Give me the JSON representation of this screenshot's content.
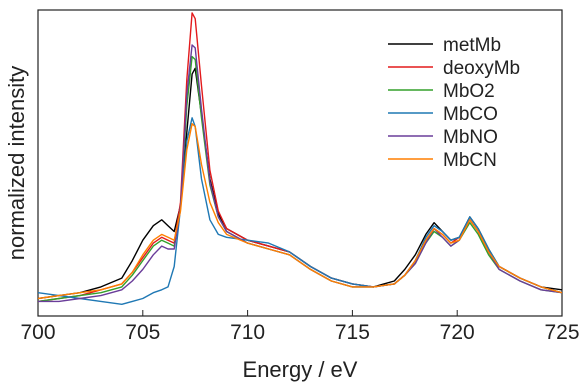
{
  "chart_data": {
    "type": "line",
    "xlabel": "Energy / eV",
    "ylabel": "normalized intensity",
    "xlim": [
      700,
      725
    ],
    "ylim": [
      -0.05,
      1.0
    ],
    "xticks": [
      700,
      705,
      710,
      715,
      720,
      725
    ],
    "show_yticks": false,
    "grid": false,
    "legend_position": "top-right",
    "series": [
      {
        "name": "metMb",
        "color": "#000000",
        "x": [
          700,
          701,
          702,
          703,
          704,
          704.5,
          705,
          705.5,
          705.9,
          706.2,
          706.5,
          706.8,
          707.1,
          707.35,
          707.5,
          707.8,
          708.2,
          708.6,
          709,
          710,
          711,
          712,
          713,
          714,
          715,
          716,
          717,
          717.5,
          718,
          718.5,
          718.9,
          719.3,
          719.7,
          720.1,
          720.6,
          721,
          721.5,
          722,
          723,
          724,
          725
        ],
        "y": [
          0.01,
          0.02,
          0.03,
          0.05,
          0.08,
          0.14,
          0.21,
          0.26,
          0.28,
          0.26,
          0.24,
          0.33,
          0.58,
          0.78,
          0.8,
          0.64,
          0.42,
          0.3,
          0.25,
          0.21,
          0.19,
          0.17,
          0.12,
          0.08,
          0.06,
          0.05,
          0.07,
          0.11,
          0.16,
          0.23,
          0.27,
          0.24,
          0.21,
          0.22,
          0.29,
          0.25,
          0.18,
          0.12,
          0.08,
          0.05,
          0.04
        ]
      },
      {
        "name": "deoxyMb",
        "color": "#e31a1c",
        "x": [
          700,
          701,
          702,
          703,
          704,
          704.5,
          705,
          705.5,
          705.9,
          706.2,
          706.5,
          706.8,
          707.1,
          707.35,
          707.5,
          707.8,
          708.2,
          708.6,
          709,
          710,
          711,
          712,
          713,
          714,
          715,
          716,
          717,
          717.5,
          718,
          718.5,
          718.9,
          719.3,
          719.7,
          720.1,
          720.6,
          721,
          721.5,
          722,
          723,
          724,
          725
        ],
        "y": [
          0.0,
          0.01,
          0.02,
          0.04,
          0.06,
          0.1,
          0.15,
          0.2,
          0.22,
          0.21,
          0.2,
          0.34,
          0.76,
          0.99,
          0.97,
          0.74,
          0.45,
          0.31,
          0.25,
          0.21,
          0.19,
          0.17,
          0.12,
          0.08,
          0.06,
          0.05,
          0.06,
          0.09,
          0.14,
          0.21,
          0.25,
          0.23,
          0.2,
          0.22,
          0.28,
          0.24,
          0.17,
          0.12,
          0.08,
          0.05,
          0.03
        ]
      },
      {
        "name": "MbO2",
        "color": "#33a02c",
        "x": [
          700,
          701,
          702,
          703,
          704,
          704.5,
          705,
          705.5,
          705.9,
          706.2,
          706.5,
          706.8,
          707.1,
          707.35,
          707.5,
          707.8,
          708.2,
          708.6,
          709,
          710,
          711,
          712,
          713,
          714,
          715,
          716,
          717,
          717.5,
          718,
          718.5,
          718.9,
          719.3,
          719.7,
          720.1,
          720.6,
          721,
          721.5,
          722,
          723,
          724,
          725
        ],
        "y": [
          0.0,
          0.01,
          0.02,
          0.03,
          0.05,
          0.09,
          0.14,
          0.19,
          0.21,
          0.2,
          0.19,
          0.32,
          0.67,
          0.84,
          0.83,
          0.63,
          0.4,
          0.29,
          0.24,
          0.2,
          0.18,
          0.16,
          0.11,
          0.07,
          0.05,
          0.05,
          0.06,
          0.09,
          0.13,
          0.2,
          0.24,
          0.22,
          0.19,
          0.21,
          0.27,
          0.23,
          0.16,
          0.11,
          0.07,
          0.04,
          0.03
        ]
      },
      {
        "name": "MbCO",
        "color": "#1f78b4",
        "x": [
          700,
          701,
          702,
          703,
          704,
          704.5,
          705,
          705.5,
          705.9,
          706.2,
          706.5,
          706.8,
          707.1,
          707.35,
          707.5,
          707.8,
          708.2,
          708.6,
          709,
          710,
          711,
          712,
          713,
          714,
          715,
          716,
          717,
          717.5,
          718,
          718.5,
          718.9,
          719.3,
          719.7,
          720.1,
          720.6,
          721,
          721.5,
          722,
          723,
          724,
          725
        ],
        "y": [
          0.03,
          0.02,
          0.01,
          0.0,
          -0.01,
          0.0,
          0.01,
          0.03,
          0.04,
          0.05,
          0.12,
          0.32,
          0.55,
          0.63,
          0.6,
          0.42,
          0.28,
          0.23,
          0.22,
          0.21,
          0.2,
          0.17,
          0.12,
          0.08,
          0.06,
          0.05,
          0.06,
          0.09,
          0.14,
          0.22,
          0.26,
          0.24,
          0.21,
          0.22,
          0.29,
          0.25,
          0.18,
          0.12,
          0.08,
          0.05,
          0.03
        ]
      },
      {
        "name": "MbNO",
        "color": "#6a3d9a",
        "x": [
          700,
          701,
          702,
          703,
          704,
          704.5,
          705,
          705.5,
          705.9,
          706.2,
          706.5,
          706.8,
          707.1,
          707.35,
          707.5,
          707.8,
          708.2,
          708.6,
          709,
          710,
          711,
          712,
          713,
          714,
          715,
          716,
          717,
          717.5,
          718,
          718.5,
          718.9,
          719.3,
          719.7,
          720.1,
          720.6,
          721,
          721.5,
          722,
          723,
          724,
          725
        ],
        "y": [
          0.0,
          0.0,
          0.01,
          0.02,
          0.04,
          0.07,
          0.11,
          0.16,
          0.19,
          0.18,
          0.18,
          0.32,
          0.71,
          0.88,
          0.87,
          0.66,
          0.41,
          0.29,
          0.24,
          0.2,
          0.18,
          0.16,
          0.11,
          0.07,
          0.05,
          0.05,
          0.06,
          0.09,
          0.13,
          0.2,
          0.25,
          0.22,
          0.19,
          0.21,
          0.28,
          0.24,
          0.17,
          0.11,
          0.07,
          0.04,
          0.03
        ]
      },
      {
        "name": "MbCN",
        "color": "#ff7f00",
        "x": [
          700,
          701,
          702,
          703,
          704,
          704.5,
          705,
          705.5,
          705.9,
          706.2,
          706.5,
          706.8,
          707.1,
          707.35,
          707.5,
          707.8,
          708.2,
          708.6,
          709,
          710,
          711,
          712,
          713,
          714,
          715,
          716,
          717,
          717.5,
          718,
          718.5,
          718.9,
          719.3,
          719.7,
          720.1,
          720.6,
          721,
          721.5,
          722,
          723,
          724,
          725
        ],
        "y": [
          0.01,
          0.02,
          0.03,
          0.04,
          0.06,
          0.1,
          0.16,
          0.21,
          0.23,
          0.22,
          0.21,
          0.31,
          0.52,
          0.61,
          0.6,
          0.47,
          0.34,
          0.27,
          0.23,
          0.2,
          0.18,
          0.16,
          0.11,
          0.07,
          0.05,
          0.05,
          0.06,
          0.09,
          0.14,
          0.21,
          0.25,
          0.23,
          0.2,
          0.21,
          0.28,
          0.24,
          0.17,
          0.12,
          0.08,
          0.05,
          0.03
        ]
      }
    ]
  }
}
